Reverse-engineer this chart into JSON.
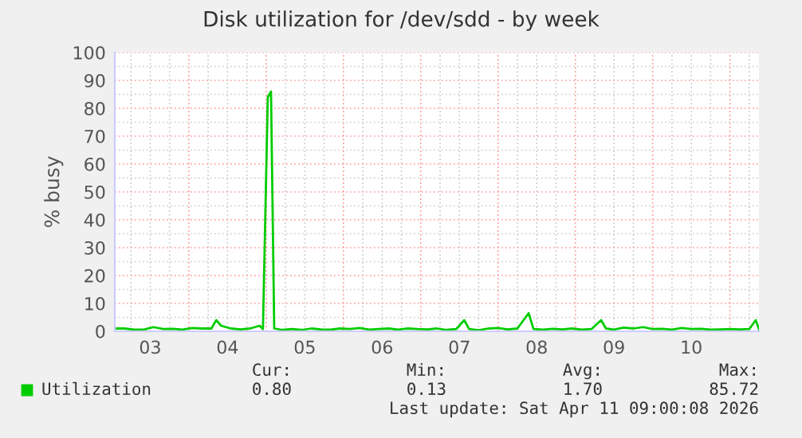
{
  "chart_data": {
    "type": "line",
    "title": "Disk utilization for /dev/sdd - by week",
    "ylabel": "% busy",
    "x": [
      "2026-04-03T01:00",
      "2026-04-03T04:00",
      "2026-04-03T07:00",
      "2026-04-03T10:00",
      "2026-04-03T13:00",
      "2026-04-03T16:00",
      "2026-04-03T19:00",
      "2026-04-03T22:00",
      "2026-04-04T01:00",
      "2026-04-04T04:00",
      "2026-04-04T07:00",
      "2026-04-04T08:30",
      "2026-04-04T10:00",
      "2026-04-04T13:00",
      "2026-04-04T16:00",
      "2026-04-04T19:00",
      "2026-04-04T22:00",
      "2026-04-04T23:00",
      "2026-04-05T00:30",
      "2026-04-05T01:30",
      "2026-04-05T02:30",
      "2026-04-05T05:00",
      "2026-04-05T08:00",
      "2026-04-05T11:00",
      "2026-04-05T14:00",
      "2026-04-05T17:00",
      "2026-04-05T20:00",
      "2026-04-05T23:00",
      "2026-04-06T02:00",
      "2026-04-06T05:00",
      "2026-04-06T08:00",
      "2026-04-06T11:00",
      "2026-04-06T14:00",
      "2026-04-06T17:00",
      "2026-04-06T20:00",
      "2026-04-06T23:00",
      "2026-04-07T02:00",
      "2026-04-07T05:00",
      "2026-04-07T08:00",
      "2026-04-07T11:00",
      "2026-04-07T13:30",
      "2026-04-07T15:00",
      "2026-04-07T18:00",
      "2026-04-07T21:00",
      "2026-04-08T00:00",
      "2026-04-08T03:00",
      "2026-04-08T06:00",
      "2026-04-08T09:30",
      "2026-04-08T11:00",
      "2026-04-08T14:00",
      "2026-04-08T17:00",
      "2026-04-08T20:00",
      "2026-04-08T23:00",
      "2026-04-09T02:00",
      "2026-04-09T05:00",
      "2026-04-09T08:00",
      "2026-04-09T09:30",
      "2026-04-09T12:00",
      "2026-04-09T15:00",
      "2026-04-09T18:00",
      "2026-04-09T21:00",
      "2026-04-10T00:00",
      "2026-04-10T03:00",
      "2026-04-10T06:00",
      "2026-04-10T09:00",
      "2026-04-10T12:00",
      "2026-04-10T15:00",
      "2026-04-10T18:00",
      "2026-04-10T21:00",
      "2026-04-11T00:00",
      "2026-04-11T03:00",
      "2026-04-11T06:00",
      "2026-04-11T08:00",
      "2026-04-11T09:00"
    ],
    "series": [
      {
        "name": "Utilization",
        "color": "#00cc00",
        "values": [
          1.0,
          1.0,
          0.6,
          0.6,
          1.5,
          0.8,
          0.9,
          0.6,
          1.2,
          1.0,
          1.0,
          4.0,
          2.0,
          1.0,
          0.7,
          1.0,
          2.0,
          0.8,
          84,
          86,
          1.0,
          0.5,
          0.8,
          0.5,
          1.0,
          0.7,
          0.6,
          1.0,
          0.8,
          1.2,
          0.6,
          0.8,
          1.0,
          0.6,
          1.0,
          0.8,
          0.7,
          1.0,
          0.5,
          0.8,
          4.0,
          0.8,
          0.4,
          1.0,
          1.2,
          0.7,
          1.0,
          6.5,
          0.8,
          0.6,
          0.9,
          0.7,
          1.0,
          0.6,
          0.8,
          4.0,
          1.0,
          0.6,
          1.3,
          1.0,
          1.5,
          0.8,
          0.9,
          0.6,
          1.2,
          0.8,
          0.9,
          0.6,
          0.7,
          0.8,
          0.7,
          0.8,
          4.0,
          0.8
        ]
      }
    ],
    "xlim": [
      "2026-04-03T01:00",
      "2026-04-11T09:00"
    ],
    "xticks": [
      {
        "value": "2026-04-03T06:00",
        "label": null
      },
      {
        "value": "2026-04-03T12:00",
        "label": "03"
      },
      {
        "value": "2026-04-03T18:00",
        "label": null
      },
      {
        "value": "2026-04-04T00:00",
        "label": null
      },
      {
        "value": "2026-04-04T06:00",
        "label": null
      },
      {
        "value": "2026-04-04T12:00",
        "label": "04"
      },
      {
        "value": "2026-04-04T18:00",
        "label": null
      },
      {
        "value": "2026-04-05T00:00",
        "label": null
      },
      {
        "value": "2026-04-05T06:00",
        "label": null
      },
      {
        "value": "2026-04-05T12:00",
        "label": "05"
      },
      {
        "value": "2026-04-05T18:00",
        "label": null
      },
      {
        "value": "2026-04-06T00:00",
        "label": null
      },
      {
        "value": "2026-04-06T06:00",
        "label": null
      },
      {
        "value": "2026-04-06T12:00",
        "label": "06"
      },
      {
        "value": "2026-04-06T18:00",
        "label": null
      },
      {
        "value": "2026-04-07T00:00",
        "label": null
      },
      {
        "value": "2026-04-07T06:00",
        "label": null
      },
      {
        "value": "2026-04-07T12:00",
        "label": "07"
      },
      {
        "value": "2026-04-07T18:00",
        "label": null
      },
      {
        "value": "2026-04-08T00:00",
        "label": null
      },
      {
        "value": "2026-04-08T06:00",
        "label": null
      },
      {
        "value": "2026-04-08T12:00",
        "label": "08"
      },
      {
        "value": "2026-04-08T18:00",
        "label": null
      },
      {
        "value": "2026-04-09T00:00",
        "label": null
      },
      {
        "value": "2026-04-09T06:00",
        "label": null
      },
      {
        "value": "2026-04-09T12:00",
        "label": "09"
      },
      {
        "value": "2026-04-09T18:00",
        "label": null
      },
      {
        "value": "2026-04-10T00:00",
        "label": null
      },
      {
        "value": "2026-04-10T06:00",
        "label": null
      },
      {
        "value": "2026-04-10T12:00",
        "label": "10"
      },
      {
        "value": "2026-04-10T18:00",
        "label": null
      },
      {
        "value": "2026-04-11T00:00",
        "label": null
      },
      {
        "value": "2026-04-11T06:00",
        "label": null
      }
    ],
    "ylim": [
      0,
      100
    ],
    "yticks": [
      0,
      {
        "value": 5,
        "label": null
      },
      10,
      {
        "value": 15,
        "label": null
      },
      20,
      {
        "value": 25,
        "label": null
      },
      30,
      {
        "value": 35,
        "label": null
      },
      40,
      {
        "value": 45,
        "label": null
      },
      50,
      {
        "value": 55,
        "label": null
      },
      60,
      {
        "value": 65,
        "label": null
      },
      70,
      {
        "value": 75,
        "label": null
      },
      80,
      {
        "value": 85,
        "label": null
      },
      90,
      {
        "value": 95,
        "label": null
      },
      100
    ],
    "grid": true,
    "legend": "bottom",
    "marker": "none",
    "line_style": "solid",
    "annotations": [
      "Cur:",
      "Min:",
      "Avg:",
      "Max:",
      "0.80",
      "0.13",
      "1.70",
      "85.72",
      "Last update: Sat Apr 11 09:00:08 2026"
    ]
  }
}
